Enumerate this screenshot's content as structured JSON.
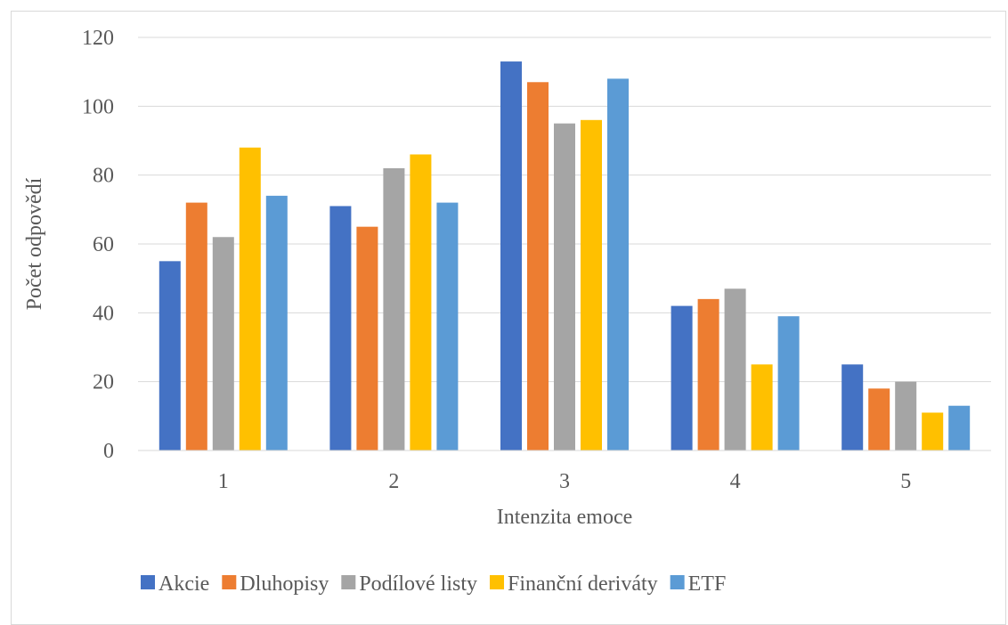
{
  "chart_data": {
    "type": "bar",
    "categories": [
      "1",
      "2",
      "3",
      "4",
      "5"
    ],
    "series": [
      {
        "name": "Akcie",
        "color": "#4472C4",
        "values": [
          55,
          71,
          113,
          42,
          25
        ]
      },
      {
        "name": "Dluhopisy",
        "color": "#ED7D31",
        "values": [
          72,
          65,
          107,
          44,
          18
        ]
      },
      {
        "name": "Podílové listy",
        "color": "#A5A5A5",
        "values": [
          62,
          82,
          95,
          47,
          20
        ]
      },
      {
        "name": "Finanční deriváty",
        "color": "#FFC000",
        "values": [
          88,
          86,
          96,
          25,
          11
        ]
      },
      {
        "name": "ETF",
        "color": "#5B9BD5",
        "values": [
          74,
          72,
          108,
          39,
          13
        ]
      }
    ],
    "xlabel": "Intenzita emoce",
    "ylabel": "Počet odpovědí",
    "ylim": [
      0,
      120
    ],
    "yticks": [
      "0",
      "20",
      "40",
      "60",
      "80",
      "100",
      "120"
    ],
    "grid": true,
    "legend_position": "bottom"
  }
}
